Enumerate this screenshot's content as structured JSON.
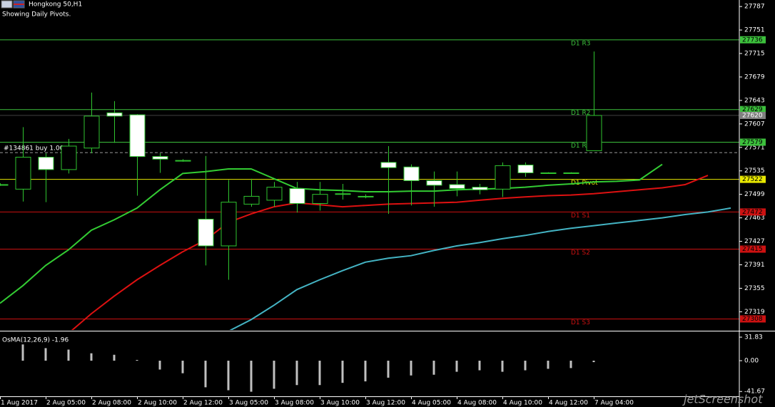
{
  "chart_data": {
    "type": "candlestick",
    "title": "Hongkong 50,H1",
    "subtitle": "Showing Daily Pivots.",
    "watermark": "jetScreenshot",
    "categories": [
      "1 Aug 2017",
      null,
      "2 Aug 05:00",
      null,
      "2 Aug 08:00",
      null,
      "2 Aug 10:00",
      null,
      "2 Aug 12:00",
      null,
      "3 Aug 05:00",
      null,
      "3 Aug 08:00",
      null,
      "3 Aug 10:00",
      null,
      "3 Aug 12:00",
      null,
      "4 Aug 05:00",
      null,
      "4 Aug 08:00",
      null,
      "4 Aug 10:00",
      null,
      "4 Aug 12:00",
      null,
      "7 Aug 04:00"
    ],
    "open": [
      27514,
      27507,
      27556,
      27537,
      27570,
      27624,
      27621,
      27557,
      27551,
      27461,
      27420,
      27484,
      27490,
      27508,
      27485,
      27500,
      27496,
      27548,
      27541,
      27520,
      27514,
      27510,
      27507,
      27544,
      27532,
      27532,
      27566
    ],
    "high": [
      27516,
      27602,
      27562,
      27584,
      27655,
      27642,
      27622,
      27562,
      27553,
      27558,
      27521,
      27523,
      27518,
      27518,
      27518,
      27515,
      27499,
      27573,
      27545,
      27534,
      27534,
      27515,
      27548,
      27548,
      27533,
      27533,
      27718
    ],
    "low": [
      27512,
      27488,
      27487,
      27531,
      27562,
      27578,
      27497,
      27532,
      27549,
      27390,
      27368,
      27480,
      27480,
      27471,
      27474,
      27491,
      27493,
      27469,
      27482,
      27480,
      27496,
      27499,
      27495,
      27526,
      27531,
      27531,
      27566
    ],
    "close": [
      27513,
      27556,
      27537,
      27573,
      27619,
      27619,
      27557,
      27553,
      27551,
      27420,
      27487,
      27496,
      27510,
      27485,
      27499,
      27500,
      27496,
      27540,
      27520,
      27513,
      27508,
      27506,
      27543,
      27532,
      27532,
      27532,
      27620
    ],
    "bull_color": "#000000",
    "bear_color": "#ffffff",
    "wick_color": "#2fc42f",
    "indicators": [
      {
        "color": "#33cc33",
        "values": [
          27332,
          27359,
          27390,
          27414,
          27444,
          27460,
          27478,
          27506,
          27531,
          27534,
          27538,
          27538,
          27523,
          27508,
          27506,
          27505,
          27503,
          27503,
          27504,
          27504,
          27506,
          27507,
          27508,
          27510,
          27513,
          27515,
          27518,
          27519,
          27521,
          27545
        ]
      },
      {
        "color": "#dd1111",
        "values": [
          null,
          null,
          null,
          27286,
          27316,
          27343,
          27368,
          27390,
          27411,
          27429,
          27456,
          27469,
          27480,
          27486,
          27483,
          27480,
          27482,
          27484,
          27485,
          27486,
          27487,
          27490,
          27493,
          27495,
          27497,
          27498,
          27500,
          27503,
          27506,
          27509,
          27514,
          27528
        ]
      },
      {
        "color": "#44b4c4",
        "values": [
          null,
          null,
          null,
          null,
          null,
          null,
          null,
          null,
          null,
          null,
          27289,
          27307,
          27329,
          27353,
          27368,
          27382,
          27395,
          27401,
          27405,
          27413,
          27420,
          27425,
          27431,
          27436,
          27442,
          27447,
          27451,
          27455,
          27459,
          27463,
          27468,
          27472,
          27478
        ]
      }
    ],
    "pivots": [
      {
        "name": "D1 R3",
        "value": 27736,
        "color": "#3cc03c"
      },
      {
        "name": "D1 R2",
        "value": 27629,
        "color": "#3cc03c"
      },
      {
        "name": "D1 R1",
        "value": 27579,
        "color": "#3cc03c"
      },
      {
        "name": "D1 Pivot",
        "value": 27522,
        "color": "#e8e800"
      },
      {
        "name": "D1 S1",
        "value": 27472,
        "color": "#cc1111"
      },
      {
        "name": "D1 S2",
        "value": 27415,
        "color": "#cc1111"
      },
      {
        "name": "D1 S3",
        "value": 27308,
        "color": "#cc1111"
      }
    ],
    "current_price": 27620,
    "current_price_color": "#808080",
    "order": {
      "label": "#134861 buy 1.00",
      "value": 27563
    },
    "ylim": [
      27291,
      27797
    ],
    "yticks": [
      27787,
      27751,
      27715,
      27679,
      27643,
      27607,
      27571,
      27535,
      27499,
      27463,
      27427,
      27391,
      27355,
      27319
    ],
    "osma": {
      "title": "OsMA(12,26,9) -1.96",
      "color": "#c0c0c0",
      "values": [
        null,
        22,
        17,
        15,
        10,
        8,
        1,
        -12,
        -17,
        -36,
        -40,
        -42,
        -38,
        -33,
        -33,
        -30,
        -28,
        -23,
        -20,
        -19,
        -15,
        -13,
        -15,
        -13,
        -11,
        -10,
        -1.96
      ],
      "ylim": [
        -48.2,
        38.6
      ],
      "yticks": [
        31.83,
        {
          "value": 0,
          "label": "0.00"
        },
        -41.67
      ]
    }
  }
}
